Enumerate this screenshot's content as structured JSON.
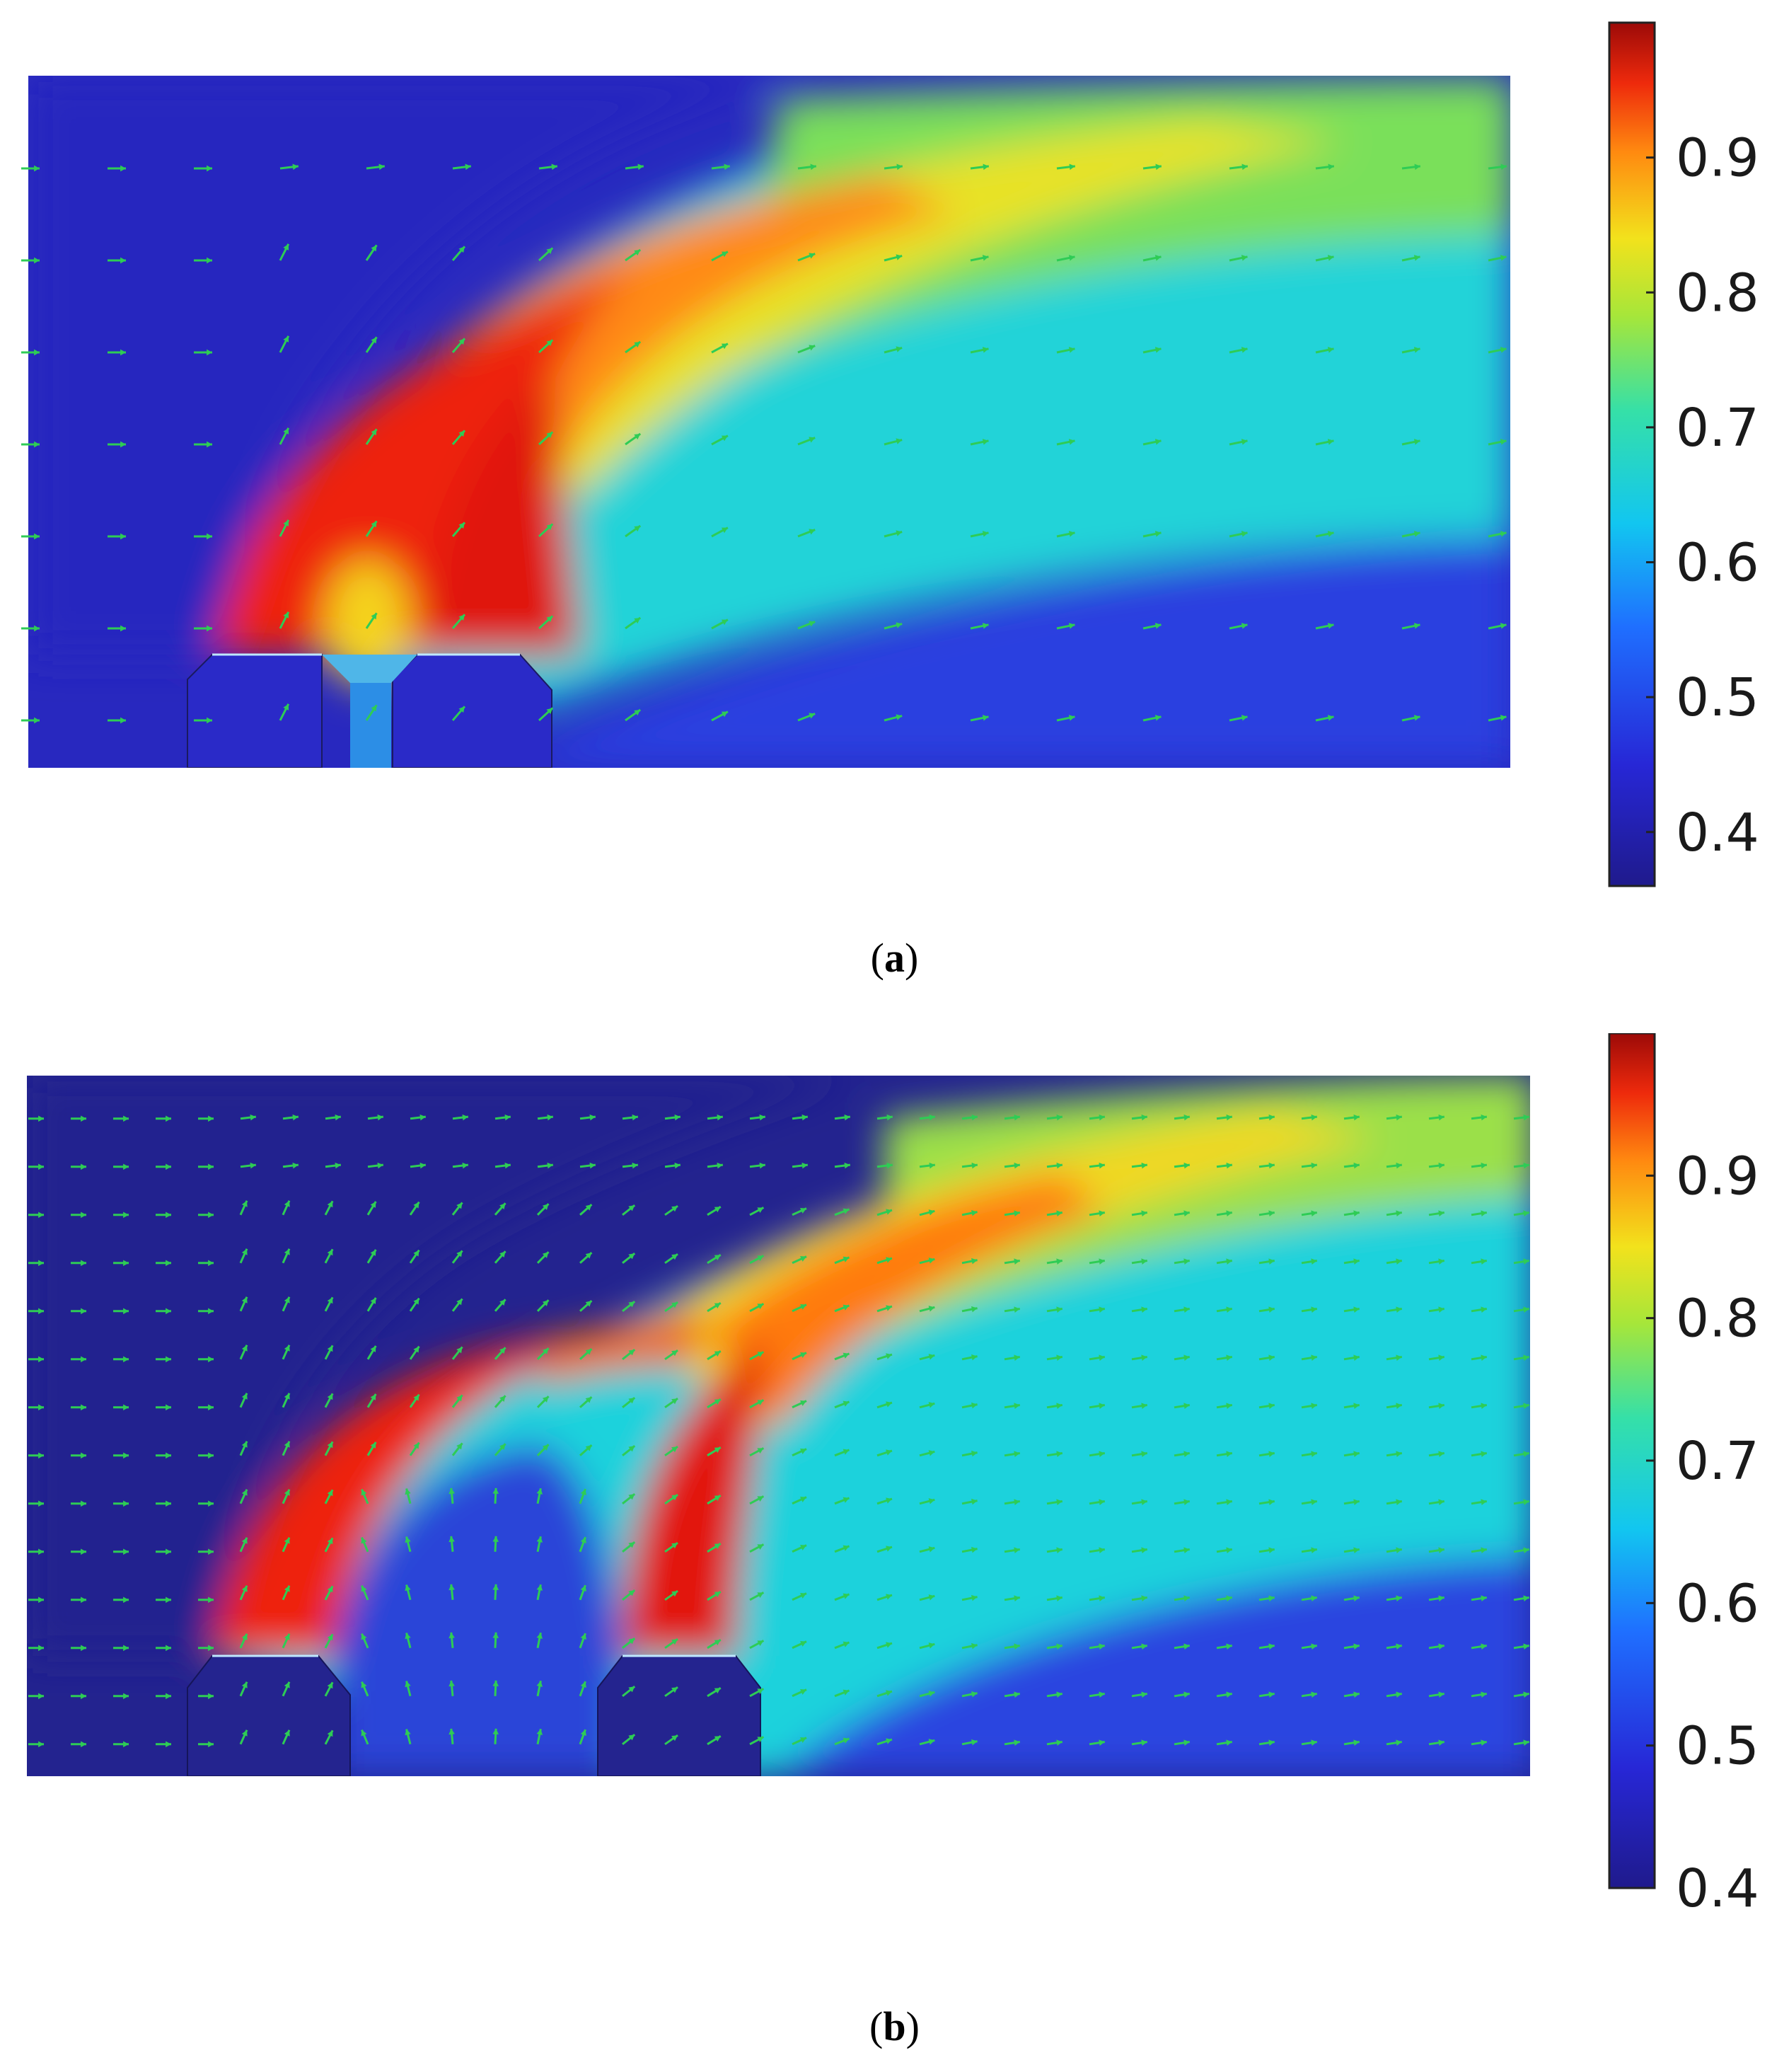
{
  "chart_data": [
    {
      "type": "heatmap",
      "panel_label": "a",
      "colorbar": {
        "ticks": [
          0.4,
          0.5,
          0.6,
          0.7,
          0.8,
          0.9
        ],
        "range": [
          0.36,
          1.0
        ]
      },
      "inlet_jets": 2,
      "vector_field": true
    },
    {
      "type": "heatmap",
      "panel_label": "b",
      "colorbar": {
        "ticks": [
          0.4,
          0.5,
          0.6,
          0.7,
          0.8,
          0.9
        ],
        "range": [
          0.4,
          1.0
        ]
      },
      "inlet_jets": 2,
      "vector_field": true
    }
  ],
  "captions": {
    "a": "a",
    "b": "b"
  },
  "colors": {
    "arrow": "#2ecc55",
    "background": "#ffffff"
  }
}
